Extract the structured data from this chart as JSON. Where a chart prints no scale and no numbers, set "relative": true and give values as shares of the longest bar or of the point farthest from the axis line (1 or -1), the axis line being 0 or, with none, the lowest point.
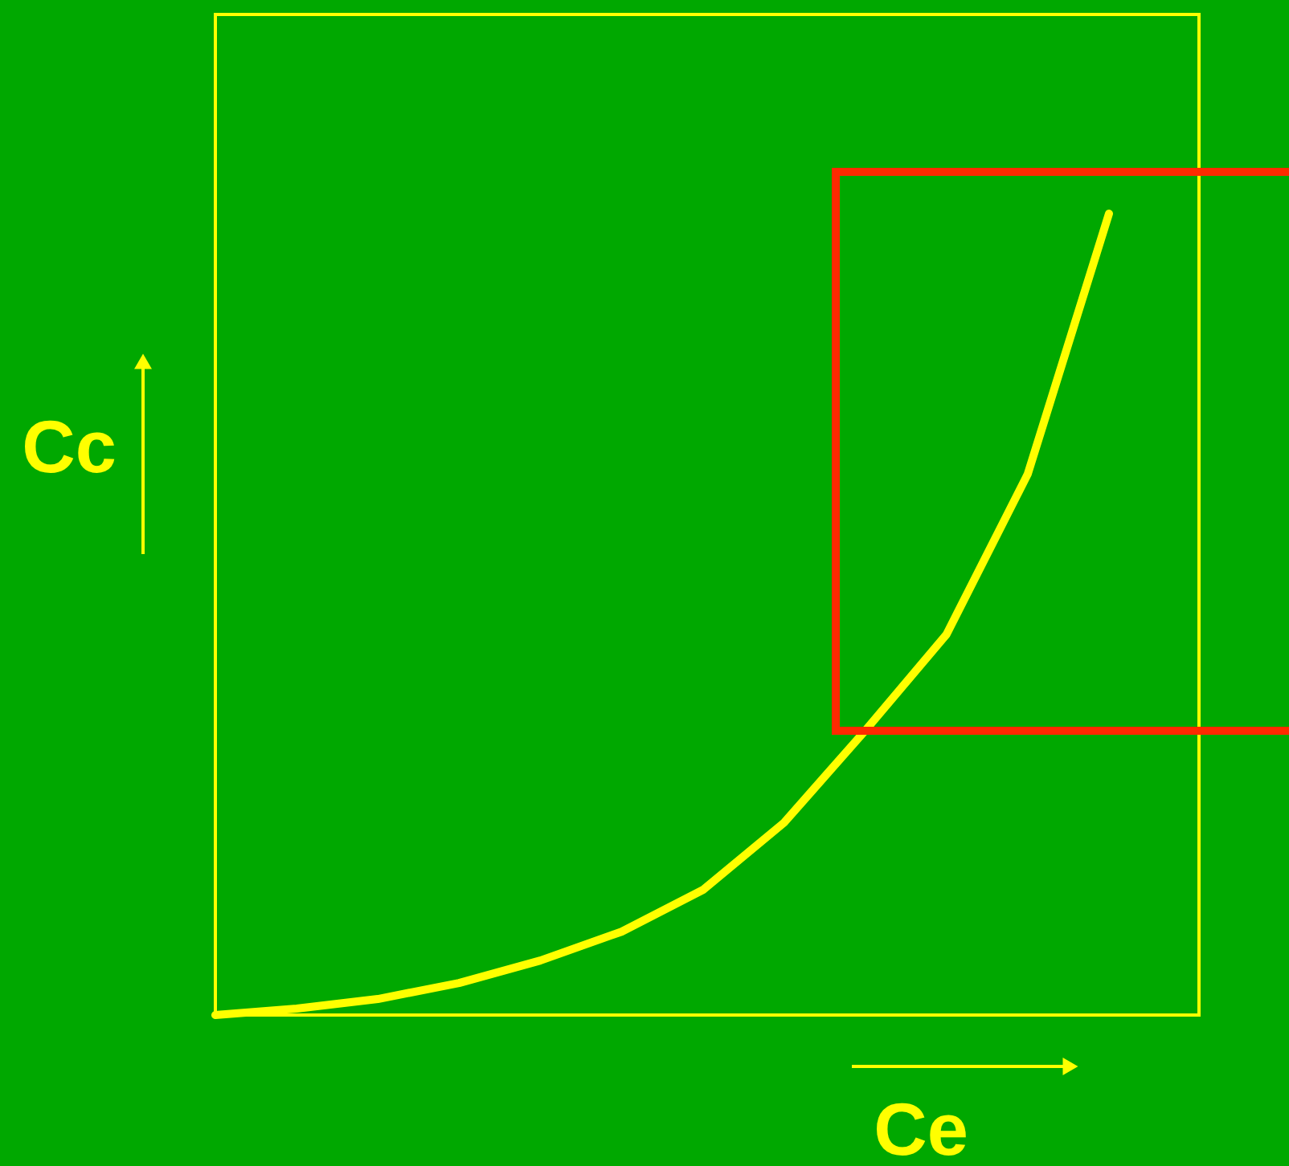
{
  "chart_data": {
    "type": "line",
    "relative": true,
    "xlabel": "Ce",
    "ylabel": "Cc",
    "line_style": "solid",
    "marker": "none",
    "categories": [
      null,
      null,
      null,
      null,
      null,
      null,
      null,
      null,
      null,
      null,
      null,
      null
    ],
    "series": [
      {
        "color": "#ffff00",
        "values": [
          0,
          0.008,
          0.02,
          0.04,
          0.068,
          0.104,
          0.156,
          0.24,
          0.355,
          0.475,
          0.675,
          1
        ]
      }
    ]
  }
}
